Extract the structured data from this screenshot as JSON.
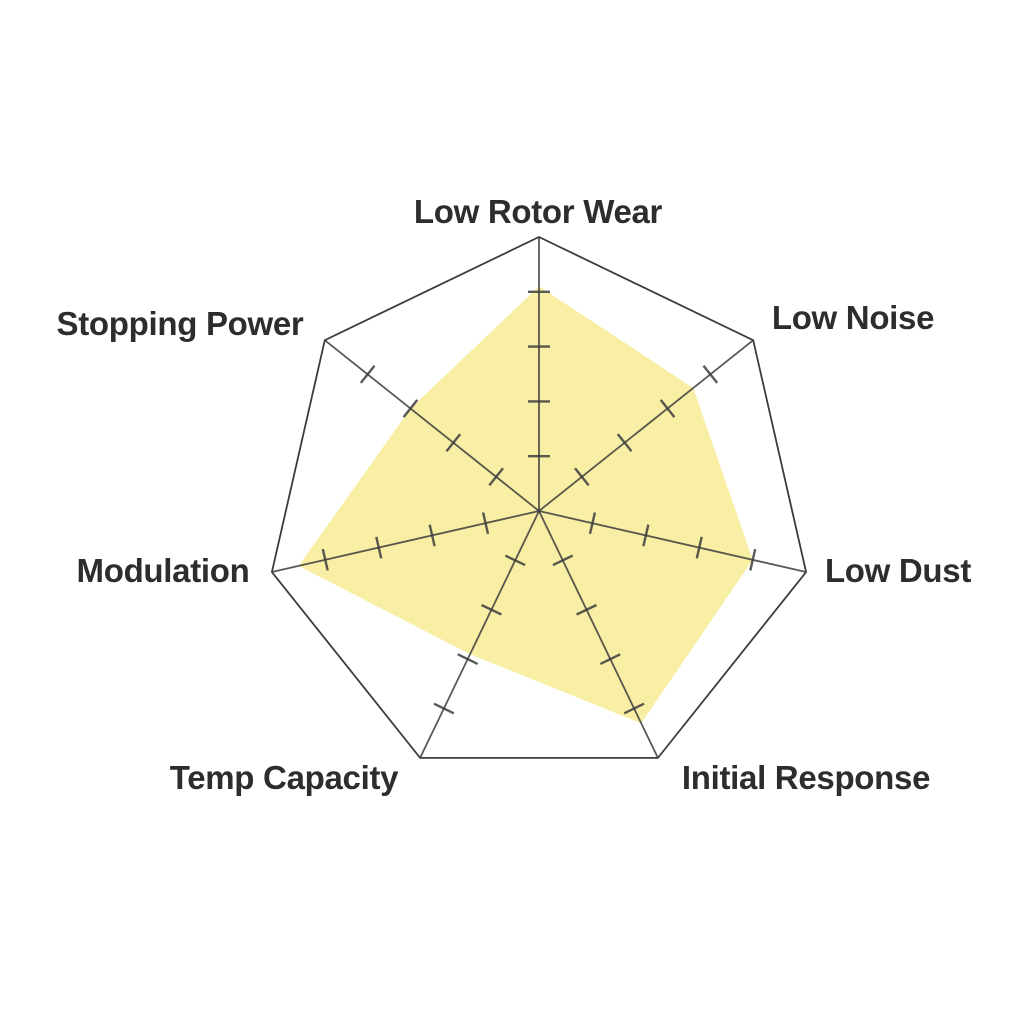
{
  "chart_data": {
    "type": "radar",
    "categories": [
      "Low Rotor Wear",
      "Low Noise",
      "Low Dust",
      "Initial Response",
      "Temp Capacity",
      "Modulation",
      "Stopping Power"
    ],
    "values": [
      4.1,
      3.6,
      4.0,
      4.3,
      2.9,
      4.5,
      3.0
    ],
    "axis_range": [
      0,
      5
    ],
    "tick_step": 1,
    "ticks_per_axis": 4,
    "grid": "radial spokes with cross ticks, single outer heptagon ring",
    "legend": "none",
    "title": "",
    "colors": {
      "fill": "#F8EEA0",
      "line": "#3C3C3C",
      "label": "#2D2D2D",
      "background": "#FFFFFF"
    }
  }
}
